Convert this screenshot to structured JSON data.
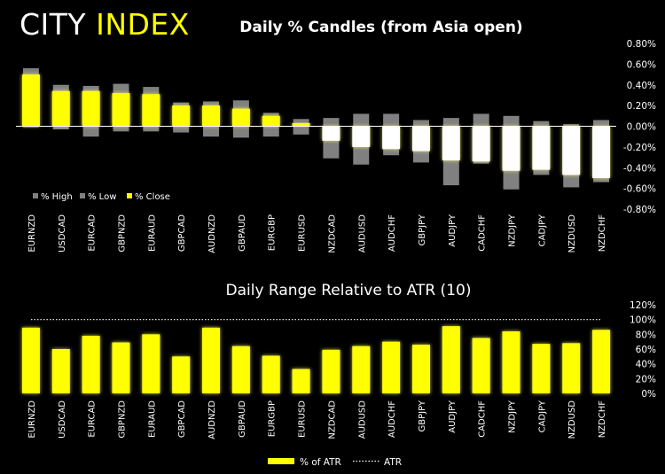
{
  "brand": {
    "part1": "CITY",
    "part2": "INDEX"
  },
  "chart_data": [
    {
      "type": "bar",
      "subtype": "candle",
      "title": "Daily % Candles (from Asia open)",
      "categories": [
        "EURNZD",
        "USDCAD",
        "EURCAD",
        "GBPNZD",
        "EURAUD",
        "GBPCAD",
        "AUDNZD",
        "GBPAUD",
        "EURGBP",
        "EURUSD",
        "NZDCAD",
        "AUDUSD",
        "AUDCHF",
        "GBPJPY",
        "AUDJPY",
        "CADCHF",
        "NZDJPY",
        "CADJPY",
        "NZDUSD",
        "NZDCHF"
      ],
      "series": [
        {
          "name": "% High",
          "values": [
            0.56,
            0.4,
            0.39,
            0.41,
            0.38,
            0.23,
            0.24,
            0.25,
            0.13,
            0.07,
            0.08,
            0.12,
            0.12,
            0.06,
            0.08,
            0.12,
            0.1,
            0.05,
            0.02,
            0.06
          ]
        },
        {
          "name": "% Low",
          "values": [
            -0.01,
            -0.03,
            -0.1,
            -0.05,
            -0.05,
            -0.06,
            -0.1,
            -0.11,
            -0.1,
            -0.08,
            -0.31,
            -0.37,
            -0.28,
            -0.35,
            -0.57,
            -0.36,
            -0.61,
            -0.47,
            -0.59,
            -0.54
          ]
        },
        {
          "name": "% Close",
          "values": [
            0.5,
            0.34,
            0.34,
            0.32,
            0.31,
            0.2,
            0.2,
            0.17,
            0.1,
            0.03,
            -0.14,
            -0.2,
            -0.22,
            -0.24,
            -0.33,
            -0.34,
            -0.43,
            -0.42,
            -0.47,
            -0.5
          ]
        }
      ],
      "yticks": [
        "0.80%",
        "0.60%",
        "0.40%",
        "0.20%",
        "0.00%",
        "-0.20%",
        "-0.40%",
        "-0.60%",
        "-0.80%"
      ],
      "ylim": [
        -0.8,
        0.8
      ],
      "legend_position": "bottom-left",
      "colors": {
        "high_low": "#808080",
        "up": "#ffff00",
        "down": "#ffffff"
      }
    },
    {
      "type": "bar",
      "title": "Daily Range Relative to ATR (10)",
      "categories": [
        "EURNZD",
        "USDCAD",
        "EURCAD",
        "GBPNZD",
        "EURAUD",
        "GBPCAD",
        "AUDNZD",
        "GBPAUD",
        "EURGBP",
        "EURUSD",
        "NZDCAD",
        "AUDUSD",
        "AUDCHF",
        "GBPJPY",
        "AUDJPY",
        "CADCHF",
        "NZDJPY",
        "CADJPY",
        "NZDUSD",
        "NZDCHF"
      ],
      "series": [
        {
          "name": "% of ATR",
          "values": [
            89,
            60,
            78,
            69,
            80,
            50,
            89,
            64,
            51,
            33,
            59,
            64,
            70,
            66,
            91,
            75,
            84,
            67,
            68,
            86
          ]
        }
      ],
      "reference": {
        "name": "ATR",
        "value": 100
      },
      "yticks": [
        "120%",
        "100%",
        "80%",
        "60%",
        "40%",
        "20%",
        "0%"
      ],
      "ylim": [
        0,
        120
      ],
      "legend_position": "bottom-center",
      "colors": {
        "bar": "#ffff00",
        "reference": "#ffffff"
      }
    }
  ]
}
